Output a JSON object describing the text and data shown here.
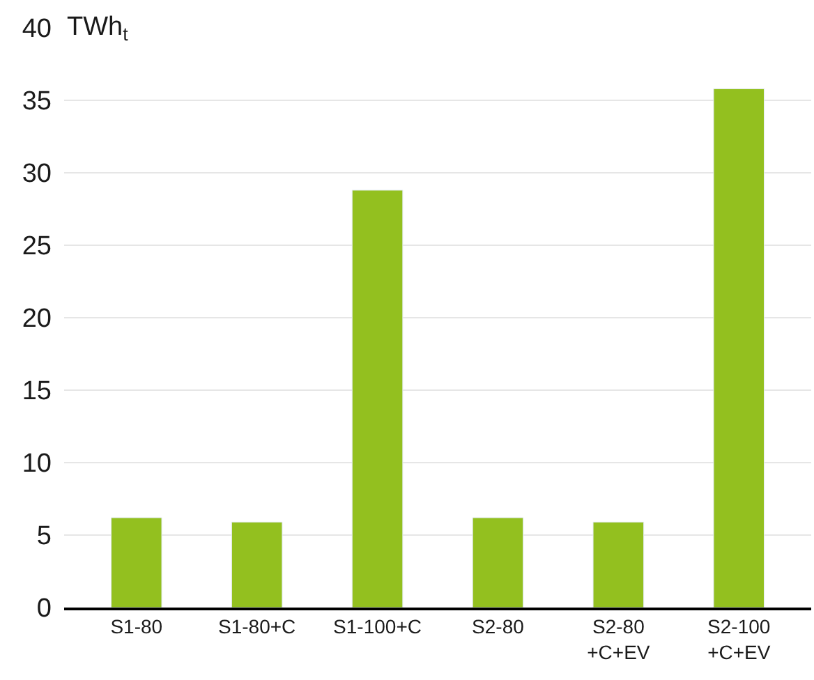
{
  "chart_data": {
    "type": "bar",
    "ylabel": "TWh$_{t}$",
    "categories": [
      "S1-80",
      "S1-80+C",
      "S1-100+C",
      "S2-80",
      "S2-80\n+C+EV",
      "S2-100\n+C+EV"
    ],
    "values": [
      6.2,
      5.9,
      28.8,
      6.2,
      5.9,
      35.8
    ],
    "color": "#93c01f",
    "ylim": [
      0,
      40
    ],
    "yticks": [
      0,
      5,
      10,
      15,
      20,
      25,
      30,
      35,
      40
    ],
    "grid": "y"
  }
}
